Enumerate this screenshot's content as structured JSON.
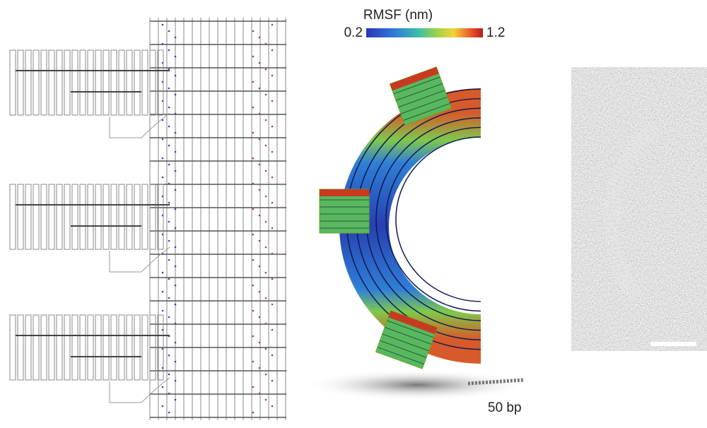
{
  "colorbar": {
    "title": "RMSF (nm)",
    "min": 0.2,
    "max": 1.2
  },
  "scale_label": "50 bp"
}
